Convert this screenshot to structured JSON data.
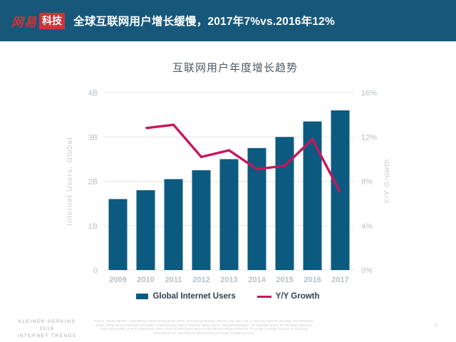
{
  "colors": {
    "header_bg": "#17587a",
    "brand_red": "#cf3338",
    "bar_blue": "#0d5a80",
    "line_crimson": "#c5175b",
    "grid": "#e4e4e4"
  },
  "header": {
    "logo_brand": "网易",
    "logo_badge": "科技",
    "headline": "全球互联网用户增长缓慢，2017年7%vs.2016年12%"
  },
  "chart_data": {
    "type": "bar+line",
    "title": "互联网用户年度增长趋势",
    "categories": [
      "2009",
      "2010",
      "2011",
      "2012",
      "2013",
      "2014",
      "2015",
      "2016",
      "2017"
    ],
    "series": [
      {
        "name": "Global Internet Users",
        "type": "bar",
        "axis": "left",
        "color": "#0d5a80",
        "values": [
          1.6,
          1.8,
          2.05,
          2.25,
          2.5,
          2.75,
          3.0,
          3.35,
          3.6
        ]
      },
      {
        "name": "Y/Y Growth",
        "type": "line",
        "axis": "right",
        "color": "#c5175b",
        "values": [
          null,
          12.8,
          13.1,
          10.2,
          10.8,
          9.1,
          9.4,
          11.8,
          7.0
        ]
      }
    ],
    "left_axis": {
      "label": "Internet Users, Global",
      "min": 0,
      "max": 4,
      "ticks": [
        "0",
        "1B",
        "2B",
        "3B",
        "4B"
      ]
    },
    "right_axis": {
      "label": "Y/Y Growth",
      "min": 0,
      "max": 16,
      "ticks": [
        "0%",
        "4%",
        "8%",
        "12%",
        "16%"
      ]
    },
    "grid": true,
    "legend_position": "bottom"
  },
  "footer": {
    "branding": [
      "KLEINER PERKINS",
      "2018",
      "INTERNET TRENDS"
    ],
    "source": "Source: United Nations / International Telecommunications Union, USA Census Bureau. Internet user data is as of mid-year. Internet user data: Pew Research (USA), China Internet Network Information Center (China), Islamic Republic News Agency / InternetWorldStats / KP estimates (Iran). KP estimates based on IAMAI data (India), & APJII (Indonesia). Note: Historical data (particularly in Sub-Saharan Africa) revised by ITU in 2017 to better account for dual-SIM subscriptions (i.e. two Internet subscriptions per single smartphone user).",
    "page_number": "7"
  }
}
